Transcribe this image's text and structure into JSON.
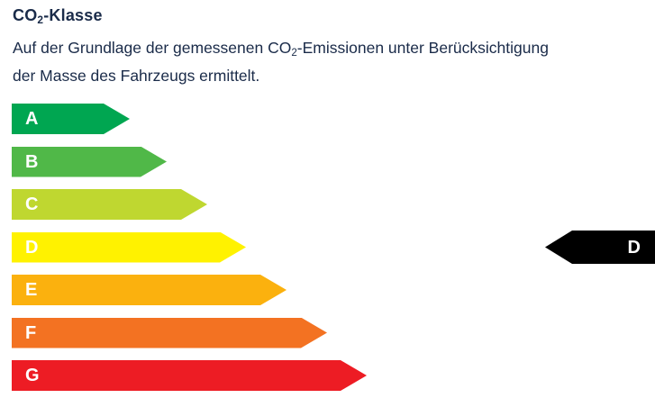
{
  "widget": {
    "title": {
      "pre": "CO",
      "sub": "2",
      "post": "-Klasse"
    },
    "description": {
      "line1_pre": "Auf der Grundlage der gemessenen CO",
      "line1_sub": "2",
      "line1_post": "-Emissionen unter Berücksichtigung",
      "line2": "der Masse des Fahrzeugs ermittelt."
    },
    "text_color": "#1A2B49"
  },
  "scale": {
    "classes": [
      {
        "label": "A",
        "color": "#00A651"
      },
      {
        "label": "B",
        "color": "#50B848"
      },
      {
        "label": "C",
        "color": "#BFD730"
      },
      {
        "label": "D",
        "color": "#FFF200"
      },
      {
        "label": "E",
        "color": "#FBB10E"
      },
      {
        "label": "F",
        "color": "#F37222"
      },
      {
        "label": "G",
        "color": "#ED1C24"
      }
    ]
  },
  "rating": {
    "selected_class": "D",
    "pointer_color": "#000000",
    "pointer_text_color": "#FFFFFF"
  }
}
